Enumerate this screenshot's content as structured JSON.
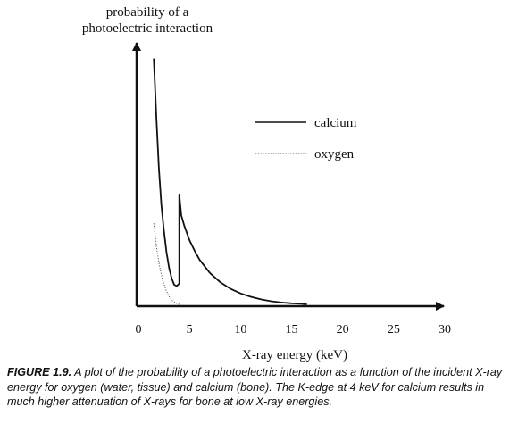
{
  "chart_data": {
    "type": "line",
    "ylabel_lines": [
      "probability of a",
      "photoelectric interaction"
    ],
    "xlabel": "X-ray energy (keV)",
    "x_ticks": [
      0,
      5,
      10,
      15,
      20,
      25,
      30
    ],
    "xlim": [
      0,
      30
    ],
    "ylim": [
      0,
      1
    ],
    "grid": false,
    "legend_position": "center-right",
    "series": [
      {
        "name": "calcium",
        "style": "solid",
        "color": "#111111",
        "points": [
          [
            1.5,
            0.94
          ],
          [
            1.75,
            0.72
          ],
          [
            2.0,
            0.52
          ],
          [
            2.25,
            0.38
          ],
          [
            2.5,
            0.28
          ],
          [
            2.75,
            0.2
          ],
          [
            3.0,
            0.14
          ],
          [
            3.25,
            0.1
          ],
          [
            3.5,
            0.075
          ],
          [
            3.75,
            0.07
          ],
          [
            4.0,
            0.08
          ],
          [
            4.0,
            0.42
          ],
          [
            4.2,
            0.34
          ],
          [
            4.5,
            0.3
          ],
          [
            5.0,
            0.245
          ],
          [
            5.5,
            0.205
          ],
          [
            6.0,
            0.17
          ],
          [
            7.0,
            0.12
          ],
          [
            8.0,
            0.085
          ],
          [
            9.0,
            0.06
          ],
          [
            10.0,
            0.042
          ],
          [
            11.0,
            0.029
          ],
          [
            12.0,
            0.019
          ],
          [
            13.0,
            0.012
          ],
          [
            14.0,
            0.007
          ],
          [
            15.0,
            0.004
          ],
          [
            16.0,
            0.002
          ],
          [
            16.5,
            0.0
          ]
        ]
      },
      {
        "name": "oxygen",
        "style": "dotted",
        "color": "#555555",
        "points": [
          [
            1.5,
            0.31
          ],
          [
            1.8,
            0.21
          ],
          [
            2.1,
            0.14
          ],
          [
            2.4,
            0.09
          ],
          [
            2.7,
            0.055
          ],
          [
            3.0,
            0.03
          ],
          [
            3.3,
            0.015
          ],
          [
            3.6,
            0.006
          ],
          [
            4.0,
            0.0
          ]
        ]
      }
    ]
  },
  "caption": {
    "label": "FIGURE 1.9.",
    "text": "A plot of the probability of a photoelectric interaction as a function of the incident X-ray energy for oxygen (water, tissue) and calcium (bone). The K-edge at 4 keV for calcium results in much higher attenuation of X-rays for bone at low X-ray energies."
  }
}
